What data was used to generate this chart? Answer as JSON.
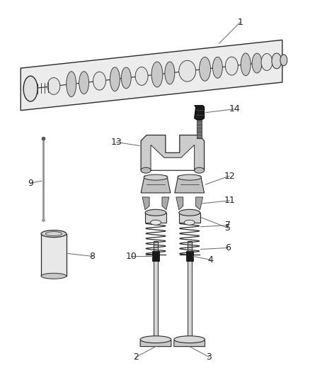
{
  "bg_color": "#ffffff",
  "line_color": "#2a2a2a",
  "label_color": "#444444",
  "figsize": [
    4.38,
    5.33
  ],
  "dpi": 100
}
